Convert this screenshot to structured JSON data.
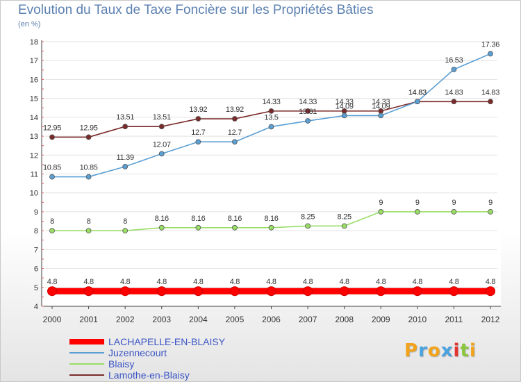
{
  "title": "Evolution du Taux de Taxe Foncière sur les Propriétés Bâties",
  "unit": "(en %)",
  "brand": {
    "text": "Proxiti",
    "letters": [
      {
        "ch": "P",
        "color": "#f2a31b"
      },
      {
        "ch": "r",
        "color": "#4aa3df"
      },
      {
        "ch": "o",
        "color": "#f2a31b"
      },
      {
        "ch": "x",
        "color": "#4aa3df"
      },
      {
        "ch": "i",
        "color": "#e3342f"
      },
      {
        "ch": "t",
        "color": "#8cc63f"
      },
      {
        "ch": "i",
        "color": "#f2a31b"
      }
    ]
  },
  "chart_data": {
    "type": "line",
    "title": "Evolution du Taux de Taxe Foncière sur les Propriétés Bâties",
    "ylabel": "(en %)",
    "xlabel": "",
    "ylim": [
      4,
      18
    ],
    "yticks": [
      4,
      5,
      6,
      7,
      8,
      9,
      10,
      11,
      12,
      13,
      14,
      15,
      16,
      17,
      18
    ],
    "x": [
      "2000",
      "2001",
      "2002",
      "2003",
      "2004",
      "2005",
      "2006",
      "2007",
      "2008",
      "2009",
      "2010",
      "2011",
      "2012"
    ],
    "grid": true,
    "legend_position": "bottom-left",
    "series": [
      {
        "name": "LACHAPELLE-EN-BLAISY",
        "color": "#ff0000",
        "values": [
          4.8,
          4.8,
          4.8,
          4.8,
          4.8,
          4.8,
          4.8,
          4.8,
          4.8,
          4.8,
          4.8,
          4.8,
          4.8
        ],
        "labels": [
          "4.8",
          "4.8",
          "4.8",
          "4.8",
          "4.8",
          "4.8",
          "4.8",
          "4.8",
          "4.8",
          "4.8",
          "4.8",
          "4.8",
          "4.8"
        ]
      },
      {
        "name": "Juzennecourt",
        "color": "#5a9fd4",
        "values": [
          10.85,
          10.85,
          11.39,
          12.07,
          12.7,
          12.7,
          13.5,
          13.81,
          14.09,
          14.09,
          14.83,
          16.53,
          17.36
        ],
        "labels": [
          "10.85",
          "10.85",
          "11.39",
          "12.07",
          "12.7",
          "12.7",
          "13.5",
          "13.81",
          "14.09",
          "14.09",
          "14.83",
          "16.53",
          "17.36"
        ]
      },
      {
        "name": "Blaisy",
        "color": "#99dd66",
        "values": [
          8,
          8,
          8,
          8.16,
          8.16,
          8.16,
          8.16,
          8.25,
          8.25,
          9,
          9,
          9,
          9
        ],
        "labels": [
          "8",
          "8",
          "8",
          "8.16",
          "8.16",
          "8.16",
          "8.16",
          "8.25",
          "8.25",
          "9",
          "9",
          "9",
          "9"
        ]
      },
      {
        "name": "Lamothe-en-Blaisy",
        "color": "#7a2a2a",
        "values": [
          12.95,
          12.95,
          13.51,
          13.51,
          13.92,
          13.92,
          14.33,
          14.33,
          14.33,
          14.33,
          14.83,
          14.83,
          14.83
        ],
        "labels": [
          "12.95",
          "12.95",
          "13.51",
          "13.51",
          "13.92",
          "13.92",
          "14.33",
          "14.33",
          "14.33",
          "14.33",
          "14.83",
          "14.83",
          "14.83"
        ]
      }
    ]
  }
}
